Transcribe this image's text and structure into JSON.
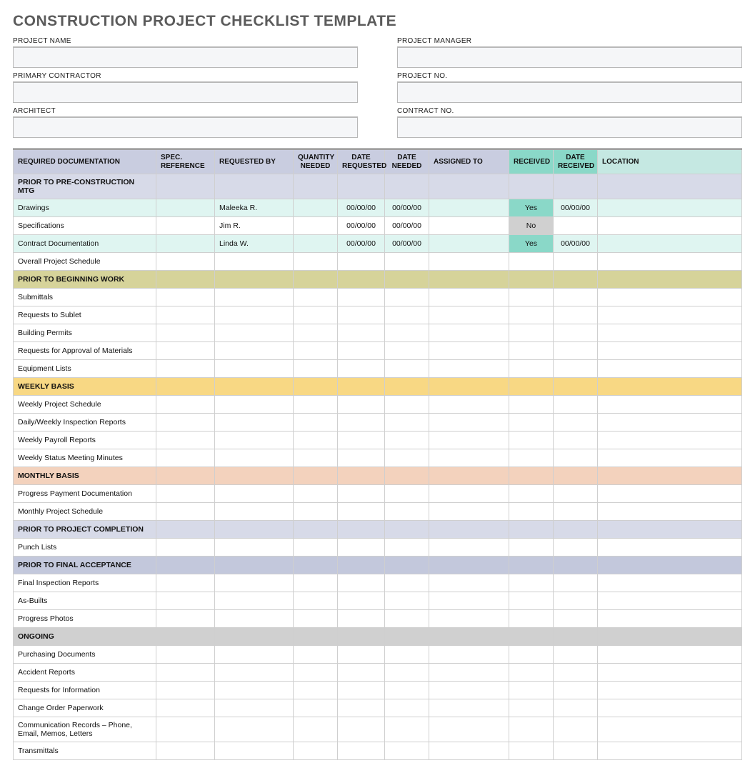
{
  "title": "CONSTRUCTION PROJECT CHECKLIST TEMPLATE",
  "meta": {
    "left": [
      {
        "label": "PROJECT NAME"
      },
      {
        "label": "PRIMARY CONTRACTOR"
      },
      {
        "label": "ARCHITECT"
      }
    ],
    "right": [
      {
        "label": "PROJECT MANAGER"
      },
      {
        "label": "PROJECT NO."
      },
      {
        "label": "CONTRACT NO."
      }
    ]
  },
  "colors": {
    "header_default": "#c9cde0",
    "header_received": "#8ad8c8",
    "header_date_received": "#8ad8c8",
    "header_location": "#c5e8e2",
    "section_preconstruction": "#d7dae8",
    "section_beginning": "#d6d39a",
    "section_weekly": "#f8d884",
    "section_monthly": "#f3d2bd",
    "section_completion": "#d7dae8",
    "section_final": "#c3c8dc",
    "section_ongoing": "#d0d0d0",
    "row_teal": "#dff5f1",
    "row_white": "#ffffff",
    "recv_yes": "#8ad8c8",
    "recv_no": "#d0d0d0"
  },
  "columns": [
    {
      "key": "doc",
      "label": "REQUIRED DOCUMENTATION",
      "align": "left"
    },
    {
      "key": "spec",
      "label": "SPEC. REFERENCE",
      "align": "left"
    },
    {
      "key": "reqby",
      "label": "REQUESTED BY",
      "align": "left"
    },
    {
      "key": "qty",
      "label": "QUANTITY NEEDED",
      "align": "center"
    },
    {
      "key": "dreq",
      "label": "DATE REQUESTED",
      "align": "center"
    },
    {
      "key": "dneed",
      "label": "DATE NEEDED",
      "align": "center"
    },
    {
      "key": "assn",
      "label": "ASSIGNED TO",
      "align": "left"
    },
    {
      "key": "recv",
      "label": "RECEIVED",
      "align": "center",
      "header_bg": "header_received"
    },
    {
      "key": "drecv",
      "label": "DATE RECEIVED",
      "align": "center",
      "header_bg": "header_date_received"
    },
    {
      "key": "loc",
      "label": "LOCATION",
      "align": "left",
      "header_bg": "header_location"
    }
  ],
  "rows": [
    {
      "type": "section",
      "label": "PRIOR TO PRE-CONSTRUCTION MTG",
      "bg": "section_preconstruction"
    },
    {
      "type": "data",
      "bg": "row_teal",
      "doc": "Drawings",
      "reqby": "Maleeka R.",
      "dreq": "00/00/00",
      "dneed": "00/00/00",
      "recv": "Yes",
      "drecv": "00/00/00",
      "recv_bg": "recv_yes"
    },
    {
      "type": "data",
      "bg": "row_white",
      "doc": "Specifications",
      "reqby": "Jim R.",
      "dreq": "00/00/00",
      "dneed": "00/00/00",
      "recv": "No",
      "recv_bg": "recv_no"
    },
    {
      "type": "data",
      "bg": "row_teal",
      "doc": "Contract Documentation",
      "reqby": "Linda W.",
      "dreq": "00/00/00",
      "dneed": "00/00/00",
      "recv": "Yes",
      "drecv": "00/00/00",
      "recv_bg": "recv_yes"
    },
    {
      "type": "data",
      "bg": "row_white",
      "doc": "Overall Project Schedule"
    },
    {
      "type": "section",
      "label": "PRIOR TO BEGINNING WORK",
      "bg": "section_beginning"
    },
    {
      "type": "data",
      "doc": "Submittals"
    },
    {
      "type": "data",
      "doc": "Requests to Sublet"
    },
    {
      "type": "data",
      "doc": "Building Permits"
    },
    {
      "type": "data",
      "doc": "Requests for Approval of Materials"
    },
    {
      "type": "data",
      "doc": "Equipment Lists"
    },
    {
      "type": "section",
      "label": "WEEKLY BASIS",
      "bg": "section_weekly"
    },
    {
      "type": "data",
      "doc": "Weekly Project Schedule"
    },
    {
      "type": "data",
      "doc": "Daily/Weekly Inspection Reports"
    },
    {
      "type": "data",
      "doc": "Weekly Payroll Reports"
    },
    {
      "type": "data",
      "doc": "Weekly Status Meeting Minutes"
    },
    {
      "type": "section",
      "label": "MONTHLY BASIS",
      "bg": "section_monthly"
    },
    {
      "type": "data",
      "doc": "Progress Payment Documentation"
    },
    {
      "type": "data",
      "doc": "Monthly Project Schedule"
    },
    {
      "type": "section",
      "label": "PRIOR TO PROJECT COMPLETION",
      "bg": "section_completion"
    },
    {
      "type": "data",
      "doc": "Punch Lists"
    },
    {
      "type": "section",
      "label": "PRIOR TO FINAL ACCEPTANCE",
      "bg": "section_final"
    },
    {
      "type": "data",
      "doc": "Final Inspection Reports"
    },
    {
      "type": "data",
      "doc": "As-Builts"
    },
    {
      "type": "data",
      "doc": "Progress Photos"
    },
    {
      "type": "section",
      "label": "ONGOING",
      "bg": "section_ongoing"
    },
    {
      "type": "data",
      "doc": "Purchasing Documents"
    },
    {
      "type": "data",
      "doc": "Accident Reports"
    },
    {
      "type": "data",
      "doc": "Requests for Information"
    },
    {
      "type": "data",
      "doc": "Change Order Paperwork"
    },
    {
      "type": "data",
      "doc": "Communication Records – Phone, Email, Memos, Letters"
    },
    {
      "type": "data",
      "doc": "Transmittals"
    }
  ]
}
